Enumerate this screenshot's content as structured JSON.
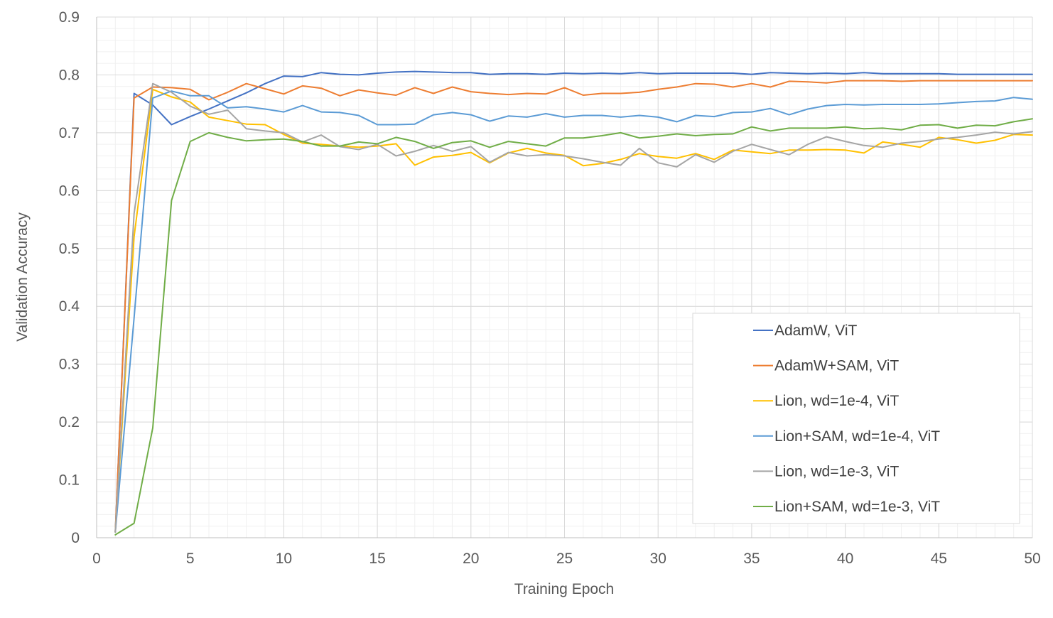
{
  "chart_data": {
    "type": "line",
    "title": "",
    "xlabel": "Training Epoch",
    "ylabel": "Validation Accuracy",
    "xlim": [
      0,
      50
    ],
    "ylim": [
      0,
      0.9
    ],
    "xticks": [
      0,
      5,
      10,
      15,
      20,
      25,
      30,
      35,
      40,
      45,
      50
    ],
    "yticks": [
      0,
      0.1,
      0.2,
      0.3,
      0.4,
      0.5,
      0.6,
      0.7,
      0.8,
      0.9
    ],
    "xtick_labels": [
      "0",
      "5",
      "10",
      "15",
      "20",
      "25",
      "30",
      "35",
      "40",
      "45",
      "50"
    ],
    "ytick_labels": [
      "0",
      "0.1",
      "0.2",
      "0.3",
      "0.4",
      "0.5",
      "0.6",
      "0.7",
      "0.8",
      "0.9"
    ],
    "grid": true,
    "legend_position": "bottom-right",
    "x": [
      1,
      2,
      3,
      4,
      5,
      6,
      7,
      8,
      9,
      10,
      11,
      12,
      13,
      14,
      15,
      16,
      17,
      18,
      19,
      20,
      21,
      22,
      23,
      24,
      25,
      26,
      27,
      28,
      29,
      30,
      31,
      32,
      33,
      34,
      35,
      36,
      37,
      38,
      39,
      40,
      41,
      42,
      43,
      44,
      45,
      46,
      47,
      48,
      49,
      50
    ],
    "series": [
      {
        "name": "AdamW, ViT",
        "color": "#4472C4",
        "values": [
          0.01,
          0.768,
          0.748,
          0.714,
          0.728,
          0.741,
          0.755,
          0.769,
          0.785,
          0.798,
          0.797,
          0.804,
          0.801,
          0.8,
          0.803,
          0.805,
          0.806,
          0.805,
          0.804,
          0.804,
          0.801,
          0.802,
          0.802,
          0.801,
          0.803,
          0.802,
          0.803,
          0.802,
          0.804,
          0.802,
          0.803,
          0.803,
          0.803,
          0.803,
          0.801,
          0.804,
          0.803,
          0.802,
          0.803,
          0.802,
          0.804,
          0.802,
          0.802,
          0.802,
          0.802,
          0.801,
          0.801,
          0.801,
          0.801,
          0.801
        ]
      },
      {
        "name": "AdamW+SAM, ViT",
        "color": "#ED7D31",
        "values": [
          0.01,
          0.76,
          0.779,
          0.778,
          0.775,
          0.757,
          0.77,
          0.785,
          0.776,
          0.767,
          0.781,
          0.777,
          0.764,
          0.774,
          0.769,
          0.765,
          0.778,
          0.768,
          0.779,
          0.771,
          0.768,
          0.766,
          0.768,
          0.767,
          0.778,
          0.765,
          0.768,
          0.768,
          0.77,
          0.775,
          0.779,
          0.785,
          0.784,
          0.779,
          0.785,
          0.779,
          0.789,
          0.788,
          0.786,
          0.79,
          0.79,
          0.79,
          0.789,
          0.79,
          0.79,
          0.79,
          0.79,
          0.79,
          0.79,
          0.79
        ]
      },
      {
        "name": "Lion, wd=1e-4, ViT",
        "color": "#FFC000",
        "values": [
          0.01,
          0.52,
          0.775,
          0.762,
          0.753,
          0.727,
          0.721,
          0.715,
          0.714,
          0.697,
          0.682,
          0.68,
          0.677,
          0.675,
          0.677,
          0.681,
          0.644,
          0.658,
          0.661,
          0.666,
          0.648,
          0.665,
          0.673,
          0.665,
          0.661,
          0.643,
          0.647,
          0.654,
          0.664,
          0.659,
          0.656,
          0.664,
          0.654,
          0.67,
          0.667,
          0.664,
          0.67,
          0.67,
          0.671,
          0.67,
          0.665,
          0.684,
          0.68,
          0.675,
          0.692,
          0.688,
          0.682,
          0.687,
          0.697,
          0.696
        ]
      },
      {
        "name": "Lion+SAM, wd=1e-4, ViT",
        "color": "#5B9BD5",
        "values": [
          0.01,
          0.38,
          0.76,
          0.772,
          0.764,
          0.764,
          0.743,
          0.745,
          0.741,
          0.736,
          0.747,
          0.736,
          0.735,
          0.73,
          0.714,
          0.714,
          0.715,
          0.731,
          0.735,
          0.731,
          0.72,
          0.729,
          0.727,
          0.733,
          0.727,
          0.73,
          0.73,
          0.727,
          0.73,
          0.727,
          0.719,
          0.73,
          0.728,
          0.735,
          0.736,
          0.742,
          0.731,
          0.741,
          0.747,
          0.749,
          0.748,
          0.749,
          0.749,
          0.749,
          0.75,
          0.752,
          0.754,
          0.755,
          0.761,
          0.758
        ]
      },
      {
        "name": "Lion, wd=1e-3, ViT",
        "color": "#A5A5A5",
        "values": [
          0.01,
          0.56,
          0.785,
          0.77,
          0.746,
          0.732,
          0.739,
          0.707,
          0.703,
          0.7,
          0.684,
          0.696,
          0.676,
          0.671,
          0.68,
          0.66,
          0.668,
          0.678,
          0.668,
          0.676,
          0.649,
          0.666,
          0.66,
          0.662,
          0.66,
          0.655,
          0.649,
          0.644,
          0.673,
          0.648,
          0.641,
          0.662,
          0.649,
          0.668,
          0.68,
          0.671,
          0.662,
          0.68,
          0.693,
          0.685,
          0.678,
          0.675,
          0.682,
          0.685,
          0.689,
          0.692,
          0.696,
          0.701,
          0.698,
          0.702
        ]
      },
      {
        "name": "Lion+SAM, wd=1e-3, ViT",
        "color": "#70AD47",
        "values": [
          0.005,
          0.025,
          0.19,
          0.583,
          0.685,
          0.7,
          0.692,
          0.686,
          0.688,
          0.689,
          0.685,
          0.677,
          0.677,
          0.684,
          0.681,
          0.692,
          0.685,
          0.673,
          0.683,
          0.686,
          0.675,
          0.685,
          0.681,
          0.677,
          0.691,
          0.691,
          0.695,
          0.7,
          0.691,
          0.694,
          0.698,
          0.695,
          0.697,
          0.698,
          0.71,
          0.703,
          0.708,
          0.708,
          0.708,
          0.71,
          0.707,
          0.708,
          0.705,
          0.713,
          0.714,
          0.708,
          0.713,
          0.712,
          0.719,
          0.724
        ]
      }
    ]
  }
}
